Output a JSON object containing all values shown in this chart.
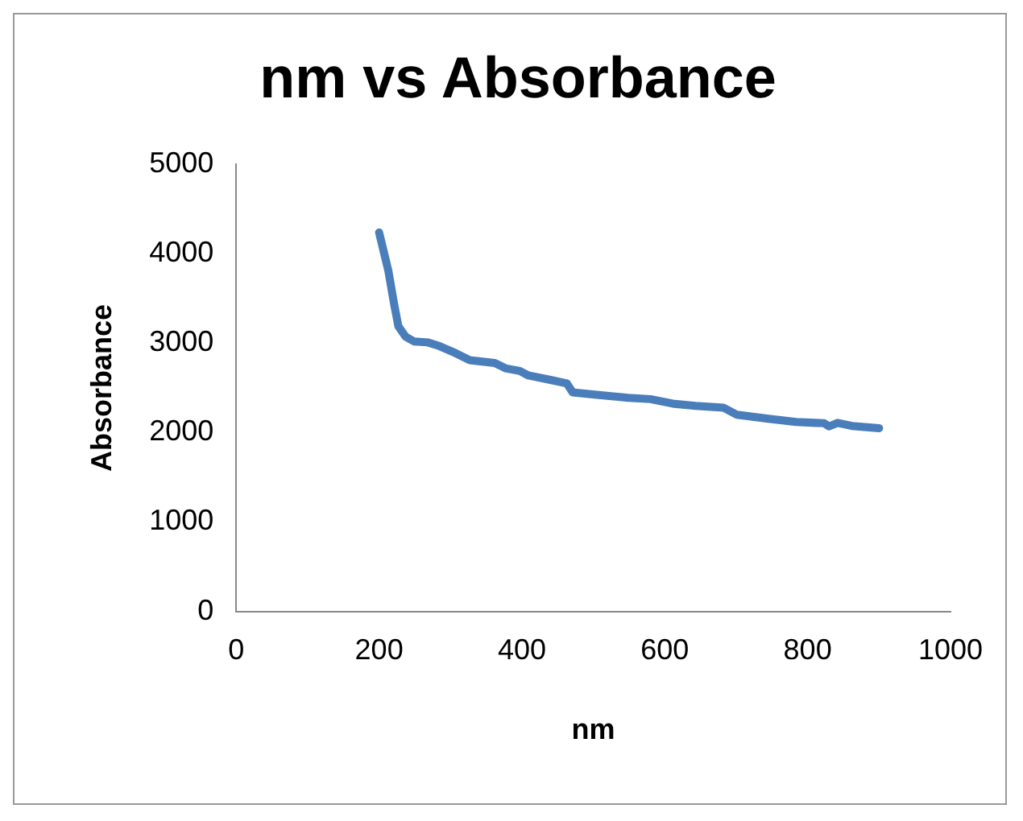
{
  "chart_data": {
    "type": "line",
    "title": "nm vs Absorbance",
    "xlabel": "nm",
    "ylabel": "Absorbance",
    "xlim": [
      0,
      1000
    ],
    "xticks": [
      0,
      200,
      400,
      600,
      800,
      1000
    ],
    "ylim": [
      0,
      5000
    ],
    "yticks": [
      0,
      1000,
      2000,
      3000,
      4000,
      5000
    ],
    "grid": false,
    "legend": false,
    "marker": "none",
    "series": [
      {
        "color": "#4a7ebb",
        "x": [
          200,
          213,
          221,
          227,
          237,
          249,
          268,
          284,
          307,
          327,
          362,
          377,
          397,
          409,
          440,
          463,
          471,
          502,
          549,
          580,
          611,
          643,
          682,
          701,
          745,
          784,
          823,
          830,
          842,
          862,
          900
        ],
        "values": [
          4240,
          3810,
          3440,
          3190,
          3075,
          3020,
          3010,
          2970,
          2890,
          2810,
          2780,
          2720,
          2690,
          2640,
          2590,
          2550,
          2450,
          2425,
          2390,
          2375,
          2325,
          2300,
          2280,
          2200,
          2155,
          2120,
          2105,
          2070,
          2110,
          2075,
          2050
        ]
      }
    ]
  }
}
